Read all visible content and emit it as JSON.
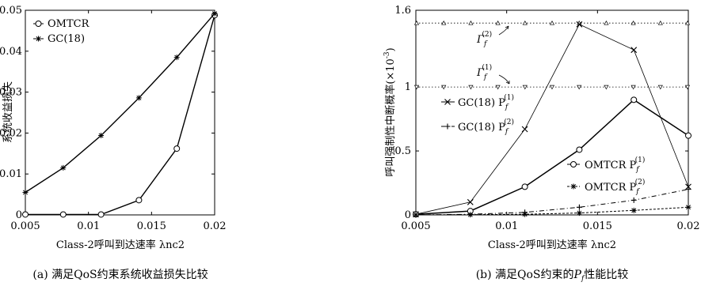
{
  "chart_data": [
    {
      "type": "line",
      "caption": "(a) 满足QoS约束系统收益损失比较",
      "xlabel": "Class-2呼叫到达速率 λnc2",
      "ylabel": "系统收益损失",
      "xlim": [
        0.005,
        0.02
      ],
      "ylim": [
        0,
        0.05
      ],
      "xticks": [
        "0.005",
        "0.01",
        "0.015",
        "0.02"
      ],
      "xtick_values": [
        0.005,
        0.01,
        0.015,
        0.02
      ],
      "yticks": [
        "0",
        "0.01",
        "0.02",
        "0.03",
        "0.04",
        "0.05"
      ],
      "ytick_values": [
        0,
        0.01,
        0.02,
        0.03,
        0.04,
        0.05
      ],
      "legend_position": "top-left",
      "series": [
        {
          "name": "OMTCR",
          "marker": "circle",
          "x": [
            0.005,
            0.008,
            0.011,
            0.014,
            0.017,
            0.02
          ],
          "y": [
            0.0001,
            0.0001,
            0.0001,
            0.0036,
            0.0162,
            0.0488
          ]
        },
        {
          "name": "GC(18)",
          "marker": "star",
          "x": [
            0.005,
            0.008,
            0.011,
            0.014,
            0.017,
            0.02
          ],
          "y": [
            0.0055,
            0.0115,
            0.0194,
            0.0286,
            0.0385,
            0.0492
          ]
        }
      ]
    },
    {
      "type": "line",
      "caption_prefix": "(b) 满足QoS约束的",
      "caption_var": "P",
      "caption_sub": "f",
      "caption_suffix": "性能比较",
      "xlabel": "Class-2呼叫到达速率 λnc2",
      "ylabel": "呼叫强制性中断概率(×10",
      "ylabel_exp": "-3",
      "ylabel_close": ")",
      "xlim": [
        0.005,
        0.02
      ],
      "ylim": [
        0,
        1.6
      ],
      "xticks": [
        "0.005",
        "0.01",
        "0.015",
        "0.02"
      ],
      "xtick_values": [
        0.005,
        0.01,
        0.015,
        0.02
      ],
      "yticks": [
        "0",
        "0.5",
        "1",
        "1.6"
      ],
      "ytick_values": [
        0,
        0.5,
        1,
        1.6
      ],
      "thresholds": [
        {
          "label": "Γ",
          "sub": "f",
          "sup": "(2)",
          "y": 1.5
        },
        {
          "label": "Γ",
          "sub": "f",
          "sup": "(1)",
          "y": 1.0
        }
      ],
      "series": [
        {
          "name": "GC(18) P",
          "sub": "f",
          "sup": "(1)",
          "marker": "x",
          "x": [
            0.005,
            0.008,
            0.011,
            0.014,
            0.017,
            0.02
          ],
          "y": [
            0.005,
            0.1,
            0.67,
            1.49,
            1.29,
            0.22
          ]
        },
        {
          "name": "GC(18) P",
          "sub": "f",
          "sup": "(2)",
          "marker": "plus",
          "x": [
            0.005,
            0.008,
            0.011,
            0.014,
            0.017,
            0.02
          ],
          "y": [
            0.0,
            0.005,
            0.02,
            0.06,
            0.115,
            0.2
          ]
        },
        {
          "name": "OMTCR P",
          "sub": "f",
          "sup": "(1)",
          "marker": "circle",
          "x": [
            0.005,
            0.008,
            0.011,
            0.014,
            0.017,
            0.02
          ],
          "y": [
            0.005,
            0.03,
            0.22,
            0.51,
            0.9,
            0.62
          ]
        },
        {
          "name": "OMTCR P",
          "sub": "f",
          "sup": "(2)",
          "marker": "star",
          "x": [
            0.005,
            0.008,
            0.011,
            0.014,
            0.017,
            0.02
          ],
          "y": [
            0.0,
            0.002,
            0.005,
            0.015,
            0.035,
            0.06
          ]
        }
      ]
    }
  ]
}
